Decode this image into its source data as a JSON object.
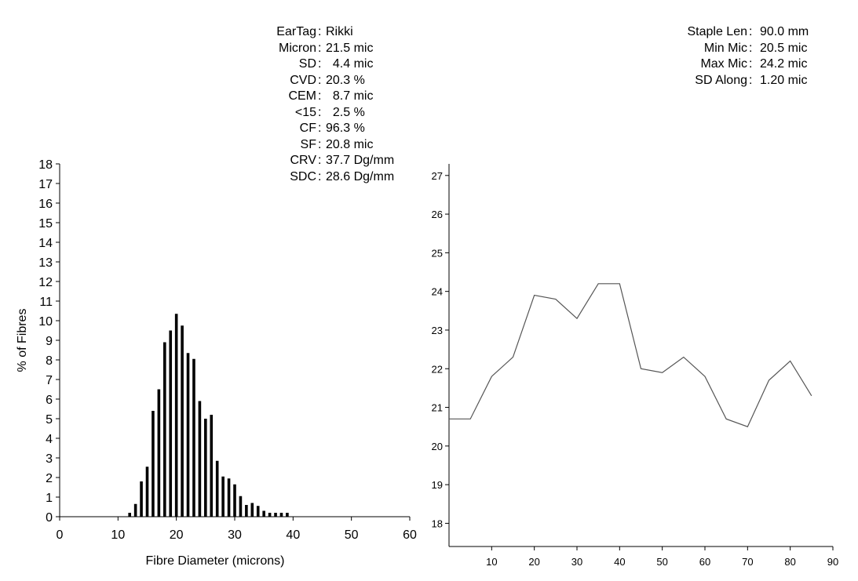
{
  "stats_left": [
    {
      "label": "EarTag",
      "value": "Rikki"
    },
    {
      "label": "Micron",
      "value": "21.5 mic"
    },
    {
      "label": "SD",
      "value": "  4.4 mic"
    },
    {
      "label": "CVD",
      "value": "20.3 %"
    },
    {
      "label": "CEM",
      "value": "  8.7 mic"
    },
    {
      "label": "<15",
      "value": "  2.5 %"
    },
    {
      "label": "CF",
      "value": "96.3 %"
    },
    {
      "label": "SF",
      "value": "20.8 mic"
    },
    {
      "label": "CRV",
      "value": "37.7 Dg/mm"
    },
    {
      "label": "SDC",
      "value": "28.6 Dg/mm"
    }
  ],
  "stats_right": [
    {
      "label": "Staple Len",
      "value": "90.0 mm"
    },
    {
      "label": "Min Mic",
      "value": "20.5 mic"
    },
    {
      "label": "Max Mic",
      "value": "24.2 mic"
    },
    {
      "label": "SD Along",
      "value": "1.20 mic"
    }
  ],
  "chart_data": [
    {
      "type": "bar",
      "xlabel": "Fibre Diameter (microns)",
      "ylabel": "% of Fibres",
      "xlim": [
        0,
        60
      ],
      "ylim": [
        0,
        18
      ],
      "x_ticks": [
        0,
        10,
        20,
        30,
        40,
        50,
        60
      ],
      "y_ticks": [
        0,
        1,
        2,
        3,
        4,
        5,
        6,
        7,
        8,
        9,
        10,
        11,
        12,
        13,
        14,
        15,
        16,
        17,
        18
      ],
      "x": [
        12,
        13,
        14,
        15,
        16,
        17,
        18,
        19,
        20,
        21,
        22,
        23,
        24,
        25,
        26,
        27,
        28,
        29,
        30,
        31,
        32,
        33,
        34,
        35,
        36,
        37,
        38,
        39
      ],
      "values": [
        0.2,
        0.65,
        1.8,
        2.55,
        5.4,
        6.5,
        8.9,
        9.5,
        10.35,
        9.75,
        8.35,
        8.05,
        5.9,
        5.0,
        5.2,
        2.85,
        2.05,
        1.95,
        1.65,
        1.05,
        0.6,
        0.7,
        0.55,
        0.3,
        0.2,
        0.2,
        0.2,
        0.2
      ],
      "grid": false
    },
    {
      "type": "line",
      "xlim": [
        0,
        90
      ],
      "ylim": [
        17.4,
        27.3
      ],
      "x_ticks": [
        10,
        20,
        30,
        40,
        50,
        60,
        70,
        80,
        90
      ],
      "y_ticks": [
        18,
        19,
        20,
        21,
        22,
        23,
        24,
        25,
        26,
        27
      ],
      "x": [
        0,
        5,
        10,
        15,
        20,
        25,
        30,
        35,
        40,
        45,
        50,
        55,
        60,
        65,
        70,
        75,
        80,
        85
      ],
      "values": [
        20.7,
        20.7,
        21.8,
        22.3,
        23.9,
        23.8,
        23.3,
        24.2,
        24.2,
        22.0,
        21.9,
        22.3,
        21.8,
        20.7,
        20.5,
        21.7,
        22.2,
        21.3
      ],
      "line_color": "#555555",
      "grid": false
    }
  ]
}
